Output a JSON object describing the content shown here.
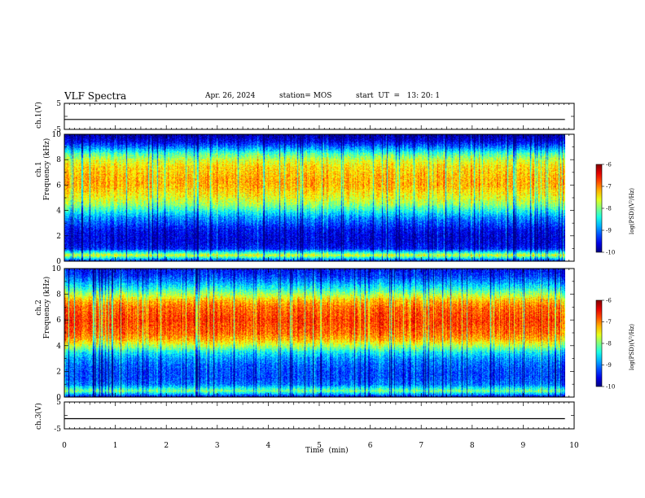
{
  "header": {
    "title": "VLF Spectra",
    "date": "Apr. 26, 2024",
    "station": "station= MOS",
    "start": "start  UT  =   13: 20: 1"
  },
  "chart_data": [
    {
      "type": "line",
      "name": "ch1-waveform",
      "ylabel": "ch.1(V)",
      "ylim": [
        -5,
        5
      ],
      "yticks": [
        "5",
        "-5"
      ],
      "xlim": [
        0,
        10
      ],
      "x": [
        0,
        9.82
      ],
      "values": [
        -1.2,
        -1.2
      ]
    },
    {
      "type": "heatmap",
      "name": "ch1-spectrogram",
      "ylabel": "ch.1\nFrequency (kHz)",
      "ylim": [
        0,
        10
      ],
      "yticks": [
        "0",
        "2",
        "4",
        "6",
        "8",
        "10"
      ],
      "xlim": [
        0,
        10
      ],
      "data_extent_min": 9.82,
      "profile_khz": [
        0,
        0.5,
        1,
        1.5,
        2,
        2.5,
        3,
        3.5,
        4,
        4.5,
        5,
        5.5,
        6,
        6.5,
        7,
        7.5,
        8,
        8.5,
        9,
        9.5,
        10
      ],
      "profile_logpsd": [
        -9.6,
        -7.6,
        -9.4,
        -9.6,
        -9.6,
        -9.5,
        -9.2,
        -8.9,
        -8.4,
        -7.9,
        -7.6,
        -7.4,
        -7.2,
        -7.2,
        -7.3,
        -7.4,
        -7.7,
        -8.2,
        -9.0,
        -9.6,
        -9.9
      ],
      "colorbar": {
        "label": "log(PSD)(V²/Hz)",
        "range": [
          -10,
          -6
        ],
        "ticks": [
          "-6",
          "-7",
          "-8",
          "-9",
          "-10"
        ]
      }
    },
    {
      "type": "heatmap",
      "name": "ch2-spectrogram",
      "ylabel": "ch.2\nFrequency (kHz)",
      "ylim": [
        0,
        10
      ],
      "yticks": [
        "0",
        "2",
        "4",
        "6",
        "8",
        "10"
      ],
      "xlim": [
        0,
        10
      ],
      "data_extent_min": 9.82,
      "profile_khz": [
        0,
        0.5,
        1,
        1.5,
        2,
        2.5,
        3,
        3.5,
        4,
        4.5,
        5,
        5.5,
        6,
        6.5,
        7,
        7.5,
        8,
        8.5,
        9,
        9.5,
        10
      ],
      "profile_logpsd": [
        -9.7,
        -8.0,
        -9.0,
        -9.2,
        -9.2,
        -9.1,
        -8.9,
        -8.5,
        -7.8,
        -7.2,
        -6.9,
        -6.8,
        -6.7,
        -6.8,
        -6.9,
        -7.2,
        -7.8,
        -8.4,
        -8.9,
        -9.3,
        -9.5
      ],
      "colorbar": {
        "label": "log(PSD)(V²/Hz)",
        "range": [
          -10,
          -6
        ],
        "ticks": [
          "-6",
          "-7",
          "-8",
          "-9",
          "-10"
        ]
      }
    },
    {
      "type": "line",
      "name": "ch3-waveform",
      "ylabel": "ch.3(V)",
      "ylim": [
        -5,
        5
      ],
      "yticks": [
        "5",
        "-5"
      ],
      "xlim": [
        0,
        10
      ],
      "x": [
        0,
        9.82
      ],
      "values": [
        -1.2,
        -1.2
      ]
    }
  ],
  "xaxis": {
    "label": "Time  (min)",
    "ticks": [
      "0",
      "1",
      "2",
      "3",
      "4",
      "5",
      "6",
      "7",
      "8",
      "9",
      "10"
    ]
  }
}
